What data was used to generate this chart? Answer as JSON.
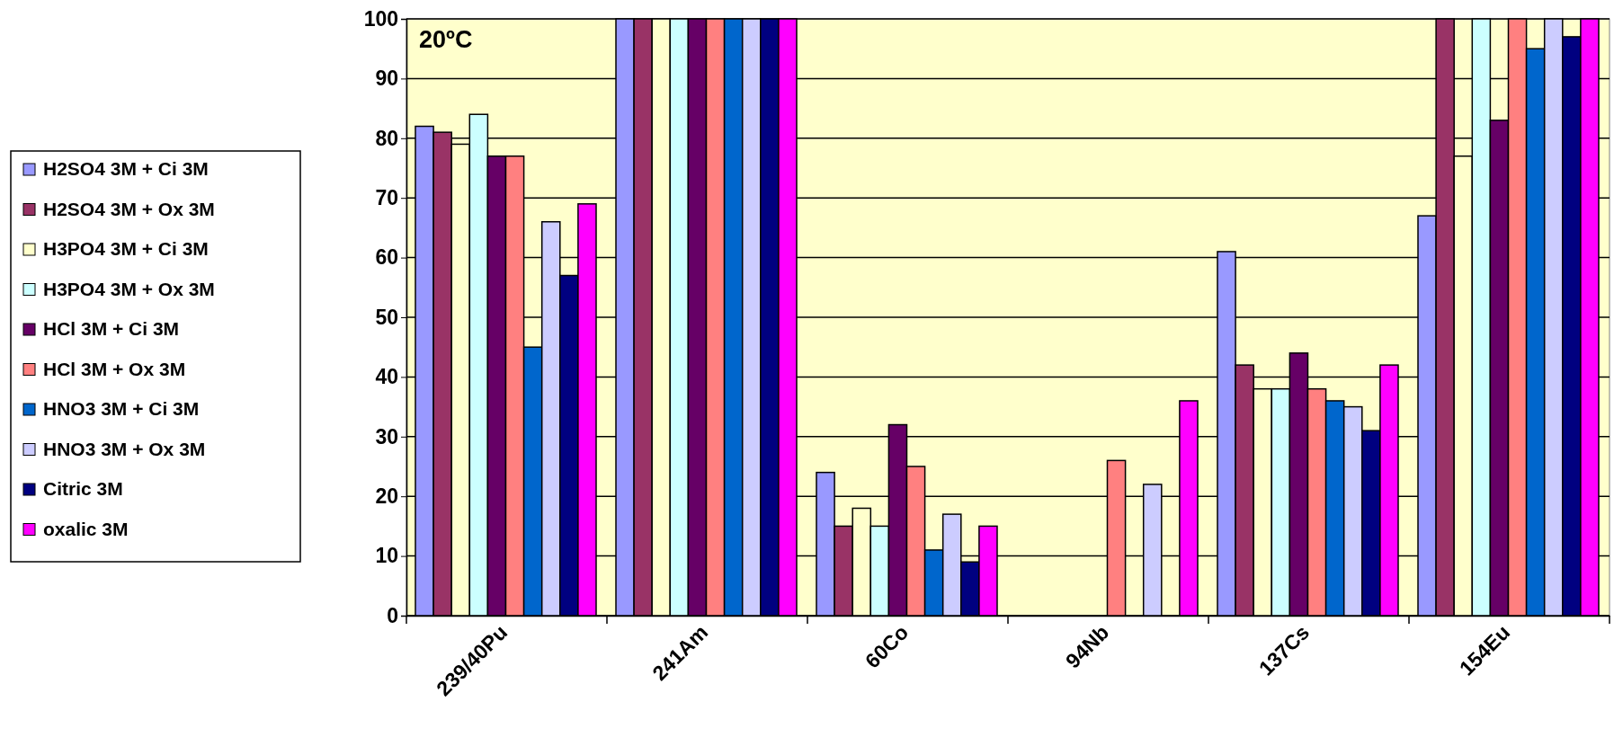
{
  "chart_data": {
    "type": "bar",
    "title": "20ºC",
    "categories": [
      "239/40Pu",
      "241Am",
      "60Co",
      "94Nb",
      "137Cs",
      "154Eu"
    ],
    "series": [
      {
        "name": "H2SO4 3M + Ci 3M",
        "color": "#9999ff",
        "values": [
          82,
          100,
          24,
          0,
          61,
          67
        ]
      },
      {
        "name": "H2SO4 3M + Ox 3M",
        "color": "#993366",
        "values": [
          81,
          100,
          15,
          0,
          42,
          100
        ]
      },
      {
        "name": "H3PO4 3M + Ci 3M",
        "color": "#ffffcc",
        "values": [
          79,
          100,
          18,
          0,
          38,
          77
        ]
      },
      {
        "name": "H3PO4 3M + Ox 3M",
        "color": "#ccffff",
        "values": [
          84,
          100,
          15,
          0,
          38,
          100
        ]
      },
      {
        "name": "HCl 3M + Ci 3M",
        "color": "#660066",
        "values": [
          77,
          100,
          32,
          0,
          44,
          83
        ]
      },
      {
        "name": "HCl 3M + Ox 3M",
        "color": "#ff8080",
        "values": [
          77,
          100,
          25,
          26,
          38,
          100
        ]
      },
      {
        "name": "HNO3 3M + Ci 3M",
        "color": "#0066cc",
        "values": [
          45,
          100,
          11,
          0,
          36,
          95
        ]
      },
      {
        "name": "HNO3 3M + Ox 3M",
        "color": "#ccccff",
        "values": [
          66,
          100,
          17,
          22,
          35,
          100
        ]
      },
      {
        "name": "Citric 3M",
        "color": "#000080",
        "values": [
          57,
          100,
          9,
          0,
          31,
          97
        ]
      },
      {
        "name": "oxalic 3M",
        "color": "#ff00ff",
        "values": [
          69,
          100,
          15,
          36,
          42,
          100
        ]
      }
    ],
    "ylim": [
      0,
      100
    ],
    "yticks": [
      0,
      10,
      20,
      30,
      40,
      50,
      60,
      70,
      80,
      90,
      100
    ],
    "grid": "y",
    "legend": "left"
  }
}
